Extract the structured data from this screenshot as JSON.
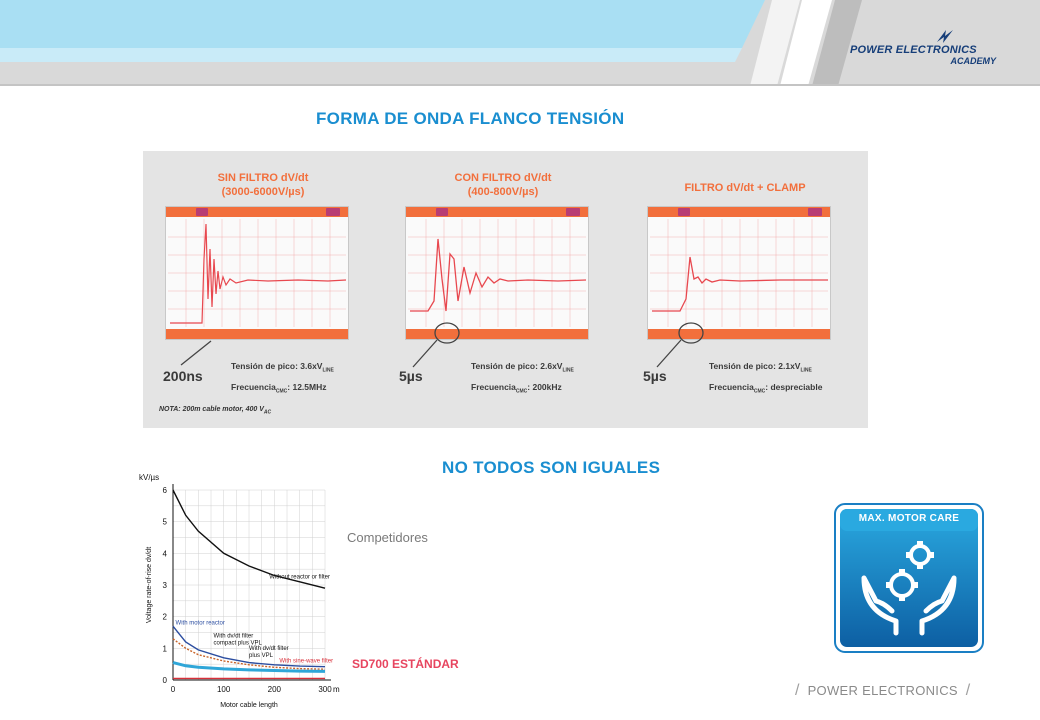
{
  "header": {
    "brand_line1": "POWER ELECTRONICS",
    "brand_line2": "ACADEMY",
    "colors": {
      "banner_light": "#a9dff3",
      "banner_gray": "#d8d8d8",
      "brand_blue": "#163e79"
    }
  },
  "section1": {
    "title": "FORMA DE ONDA FLANCO TENSIÓN",
    "panels": [
      {
        "heading_line1": "SIN FILTRO dV/dt",
        "heading_line2": "(3000-6000V/µs)",
        "timebase": "200ns",
        "peak": "Tensión de pico: 3.6xV",
        "peak_sub": "LINE",
        "freq_label": "Frecuencia",
        "freq_sub": "CMC",
        "freq_value": ": 12.5MHz"
      },
      {
        "heading_line1": "CON FILTRO dV/dt",
        "heading_line2": "(400-800V/µs)",
        "timebase": "5µs",
        "peak": "Tensión de pico: 2.6xV",
        "peak_sub": "LINE",
        "freq_label": "Frecuencia",
        "freq_sub": "CMC",
        "freq_value": ": 200kHz"
      },
      {
        "heading_line1": "FILTRO dV/dt + CLAMP",
        "heading_line2": "",
        "timebase": "5µs",
        "peak": "Tensión de pico: 2.1xV",
        "peak_sub": "LINE",
        "freq_label": "Frecuencia",
        "freq_sub": "CMC",
        "freq_value": ": despreciable"
      }
    ],
    "note": "NOTA: 200m cable motor, 400 V",
    "note_sub": "AC"
  },
  "section2": {
    "title": "NO TODOS SON IGUALES",
    "competitors_label": "Competidores",
    "sd700_label": "SD700 ESTÁNDAR",
    "badge_label": "MAX. MOTOR CARE"
  },
  "chart_data": {
    "type": "line",
    "unit_label": "kV/µs",
    "ylabel": "Voltage rate-of-rise dv/dt",
    "xlabel": "Motor cable length",
    "x_unit": "m",
    "xlim": [
      0,
      300
    ],
    "ylim": [
      0,
      6
    ],
    "x_ticks": [
      "0",
      "100",
      "200",
      "300"
    ],
    "y_ticks": [
      "0",
      "1",
      "2",
      "3",
      "4",
      "5",
      "6"
    ],
    "grid": true,
    "series": [
      {
        "name": "Without reactor or filter",
        "color": "#111111",
        "x": [
          0,
          25,
          50,
          100,
          150,
          200,
          250,
          300
        ],
        "y": [
          6.0,
          5.2,
          4.7,
          4.0,
          3.6,
          3.3,
          3.1,
          2.9
        ]
      },
      {
        "name": "With motor reactor",
        "color": "#2b4da0",
        "x": [
          0,
          25,
          50,
          100,
          150,
          200,
          250,
          300
        ],
        "y": [
          1.7,
          1.2,
          0.95,
          0.7,
          0.55,
          0.48,
          0.44,
          0.42
        ]
      },
      {
        "name": "With dv/dt filter compact plus VPL",
        "color": "#c8642a",
        "x": [
          0,
          25,
          50,
          100,
          150,
          200,
          250,
          300
        ],
        "y": [
          1.3,
          1.0,
          0.8,
          0.6,
          0.48,
          0.4,
          0.36,
          0.34
        ]
      },
      {
        "name": "With dv/dt filter plus VPL",
        "color": "#2fa6d8",
        "x": [
          0,
          25,
          50,
          100,
          150,
          200,
          250,
          300
        ],
        "y": [
          0.55,
          0.45,
          0.4,
          0.35,
          0.32,
          0.3,
          0.28,
          0.27
        ]
      },
      {
        "name": "With sine-wave filter",
        "color": "#d8303a",
        "x": [
          0,
          100,
          200,
          300
        ],
        "y": [
          0.05,
          0.05,
          0.05,
          0.05
        ]
      }
    ]
  },
  "footer": {
    "text": "POWER ELECTRONICS"
  }
}
